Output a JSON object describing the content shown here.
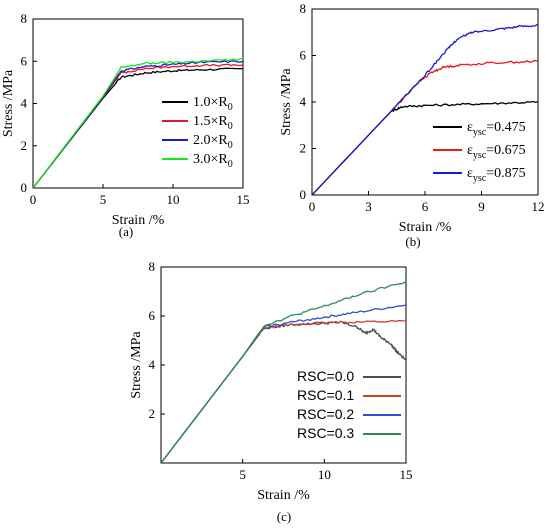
{
  "chart_data": [
    {
      "type": "line",
      "panel_label": "(a)",
      "xlabel": "Strain /%",
      "ylabel": "Stress /MPa",
      "xlim": [
        0,
        15
      ],
      "ylim": [
        0,
        8
      ],
      "xticks": [
        "0",
        "5",
        "10",
        "15"
      ],
      "yticks": [
        "0",
        "2",
        "4",
        "6",
        "8"
      ],
      "legend_position": "center-right",
      "series": [
        {
          "base": "1.0×R",
          "sub": "0",
          "color": "#000000",
          "points": [
            [
              0,
              0
            ],
            [
              5,
              4.25
            ],
            [
              6.3,
              5.25
            ],
            [
              8,
              5.45
            ],
            [
              10,
              5.55
            ],
            [
              12,
              5.6
            ],
            [
              15,
              5.65
            ]
          ]
        },
        {
          "base": "1.5×R",
          "sub": "0",
          "color": "#e8191b",
          "points": [
            [
              0,
              0
            ],
            [
              5,
              4.3
            ],
            [
              6.3,
              5.45
            ],
            [
              8,
              5.65
            ],
            [
              10,
              5.75
            ],
            [
              12,
              5.8
            ],
            [
              15,
              5.82
            ]
          ]
        },
        {
          "base": "2.0×R",
          "sub": "0",
          "color": "#1d1ac8",
          "points": [
            [
              0,
              0
            ],
            [
              5,
              4.3
            ],
            [
              6.3,
              5.55
            ],
            [
              8,
              5.75
            ],
            [
              10,
              5.85
            ],
            [
              12,
              5.95
            ],
            [
              15,
              6.0
            ]
          ]
        },
        {
          "base": "3.0×R",
          "sub": "0",
          "color": "#19e619",
          "points": [
            [
              0,
              0
            ],
            [
              5,
              4.35
            ],
            [
              6.3,
              5.7
            ],
            [
              8,
              5.9
            ],
            [
              10,
              5.95
            ],
            [
              12,
              6.0
            ],
            [
              15,
              6.1
            ]
          ]
        }
      ]
    },
    {
      "type": "line",
      "panel_label": "(b)",
      "xlabel": "Strain /%",
      "ylabel": "Stress /MPa",
      "xlim": [
        0,
        12
      ],
      "ylim": [
        0,
        8
      ],
      "xticks": [
        "0",
        "3",
        "6",
        "9",
        "12"
      ],
      "yticks": [
        "0",
        "2",
        "4",
        "6",
        "8"
      ],
      "legend_position": "bottom-right",
      "series": [
        {
          "base": "ε",
          "sub": "ysc",
          "suffix": "=0.475",
          "color": "#000000",
          "points": [
            [
              0,
              0
            ],
            [
              4.2,
              3.6
            ],
            [
              4.8,
              3.8
            ],
            [
              6,
              3.85
            ],
            [
              8,
              3.9
            ],
            [
              10,
              3.95
            ],
            [
              12,
              4.0
            ]
          ]
        },
        {
          "base": "ε",
          "sub": "ysc",
          "suffix": "=0.675",
          "color": "#e8191b",
          "points": [
            [
              0,
              0
            ],
            [
              4.2,
              3.6
            ],
            [
              5.5,
              4.75
            ],
            [
              6.3,
              5.25
            ],
            [
              7,
              5.5
            ],
            [
              8,
              5.6
            ],
            [
              10,
              5.7
            ],
            [
              12,
              5.75
            ]
          ]
        },
        {
          "base": "ε",
          "sub": "ysc",
          "suffix": "=0.875",
          "color": "#1d1ac8",
          "points": [
            [
              0,
              0
            ],
            [
              4.2,
              3.6
            ],
            [
              6,
              5.15
            ],
            [
              7,
              6.1
            ],
            [
              7.7,
              6.7
            ],
            [
              8.5,
              7.0
            ],
            [
              10,
              7.15
            ],
            [
              11,
              7.25
            ],
            [
              12,
              7.3
            ]
          ]
        }
      ]
    },
    {
      "type": "line",
      "panel_label": "(c)",
      "xlabel": "Strain /%",
      "ylabel": "Stress /MPa",
      "xlim": [
        0,
        15
      ],
      "ylim": [
        0,
        8
      ],
      "xticks": [
        "5",
        "10",
        "15"
      ],
      "yticks": [
        "2",
        "4",
        "6",
        "8"
      ],
      "legend_position": "bottom-right",
      "series": [
        {
          "label": "RSC=0.0",
          "color": "#4d4d4d",
          "points": [
            [
              0,
              0
            ],
            [
              5,
              4.35
            ],
            [
              6.3,
              5.5
            ],
            [
              8,
              5.65
            ],
            [
              10,
              5.7
            ],
            [
              11,
              5.75
            ],
            [
              12,
              5.55
            ],
            [
              12.5,
              5.3
            ],
            [
              13,
              5.45
            ],
            [
              13.5,
              5.1
            ],
            [
              14,
              4.9
            ],
            [
              14.5,
              4.5
            ],
            [
              15,
              4.2
            ]
          ]
        },
        {
          "label": "RSC=0.1",
          "color": "#c8432a",
          "points": [
            [
              0,
              0
            ],
            [
              5,
              4.35
            ],
            [
              6.3,
              5.5
            ],
            [
              8,
              5.65
            ],
            [
              10,
              5.72
            ],
            [
              12,
              5.76
            ],
            [
              15,
              5.8
            ]
          ]
        },
        {
          "label": "RSC=0.2",
          "color": "#2c4fd6",
          "points": [
            [
              0,
              0
            ],
            [
              5,
              4.35
            ],
            [
              6.3,
              5.55
            ],
            [
              8,
              5.75
            ],
            [
              10,
              5.95
            ],
            [
              12,
              6.15
            ],
            [
              15,
              6.45
            ]
          ]
        },
        {
          "label": "RSC=0.3",
          "color": "#2e8b57",
          "points": [
            [
              0,
              0
            ],
            [
              5,
              4.35
            ],
            [
              6.3,
              5.6
            ],
            [
              8,
              6.0
            ],
            [
              10,
              6.4
            ],
            [
              12,
              6.85
            ],
            [
              15,
              7.4
            ]
          ]
        }
      ]
    }
  ]
}
